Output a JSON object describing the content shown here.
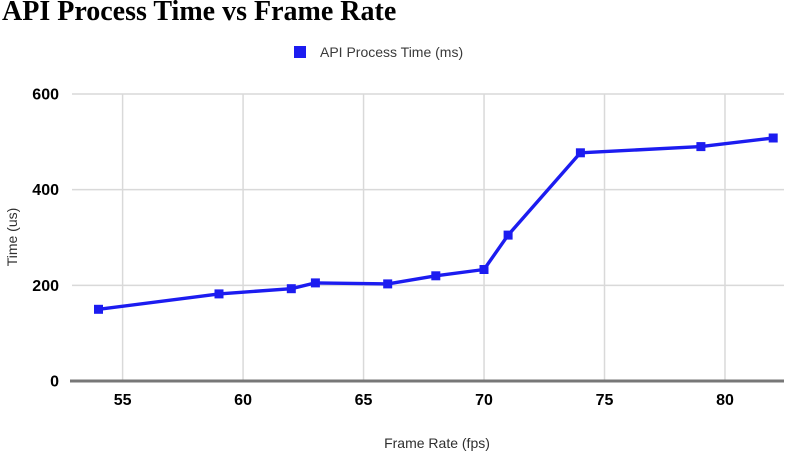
{
  "title": "API Process Time vs Frame Rate",
  "legend": {
    "label": "API Process Time (ms)"
  },
  "axes": {
    "x_label": "Frame Rate (fps)",
    "y_label": "Time (us)"
  },
  "colors": {
    "line": "#1c1cf0",
    "marker": "#1c1cf0",
    "grid": "#d9d9d9",
    "axis_line": "#777777",
    "tick_text": "#000000",
    "axis_title_text": "#2f2f2f",
    "legend_text": "#3a3a3a",
    "background": "#ffffff"
  },
  "chart_data": {
    "type": "line",
    "title": "API Process Time vs Frame Rate",
    "xlabel": "Frame Rate (fps)",
    "ylabel": "Time (us)",
    "series": [
      {
        "name": "API Process Time (ms)",
        "marker": "square",
        "x": [
          54,
          59,
          62,
          63,
          66,
          68,
          70,
          71,
          74,
          79,
          82
        ],
        "y": [
          150,
          182,
          193,
          205,
          203,
          220,
          233,
          305,
          477,
          490,
          508
        ]
      }
    ],
    "x_ticks": [
      55,
      60,
      65,
      70,
      75,
      80
    ],
    "y_ticks": [
      0,
      200,
      400,
      600
    ],
    "xlim": [
      52.9,
      82.2
    ],
    "ylim": [
      0,
      600
    ],
    "grid": true,
    "legend_position": "top-center"
  }
}
